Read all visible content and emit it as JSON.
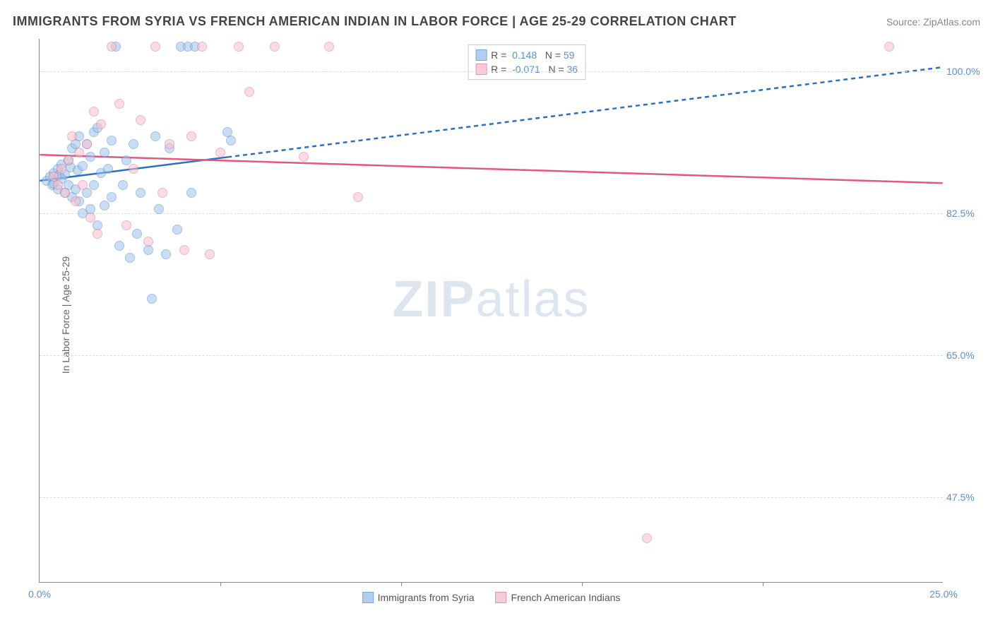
{
  "title": "IMMIGRANTS FROM SYRIA VS FRENCH AMERICAN INDIAN IN LABOR FORCE | AGE 25-29 CORRELATION CHART",
  "source": "Source: ZipAtlas.com",
  "ylabel": "In Labor Force | Age 25-29",
  "watermark_bold": "ZIP",
  "watermark_rest": "atlas",
  "chart": {
    "type": "scatter",
    "xlim": [
      0,
      25
    ],
    "ylim": [
      37,
      104
    ],
    "y_ticks": [
      47.5,
      65.0,
      82.5,
      100.0
    ],
    "y_tick_labels": [
      "47.5%",
      "65.0%",
      "82.5%",
      "100.0%"
    ],
    "x_ticks": [
      0,
      5,
      10,
      15,
      20,
      25
    ],
    "x_tick_labels": [
      "0.0%",
      "",
      "",
      "",
      "",
      "25.0%"
    ],
    "grid_color": "#dddddd",
    "background_color": "#ffffff",
    "series": [
      {
        "name": "Immigrants from Syria",
        "label": "Immigrants from Syria",
        "fill": "#9ec2ea",
        "stroke": "#5b8fd6",
        "fill_opacity": 0.55,
        "marker_size": 14,
        "R": "0.148",
        "N": "59",
        "trend": {
          "x1": 0,
          "y1": 86.5,
          "x2": 25,
          "y2": 100.5,
          "solid_until_x": 5.2,
          "color": "#2b6fc4",
          "width": 2.5,
          "dash": "6,5"
        },
        "points": [
          [
            0.2,
            86.5
          ],
          [
            0.3,
            87.0
          ],
          [
            0.35,
            86.0
          ],
          [
            0.4,
            87.5
          ],
          [
            0.4,
            86.2
          ],
          [
            0.5,
            88.0
          ],
          [
            0.5,
            85.5
          ],
          [
            0.55,
            87.2
          ],
          [
            0.6,
            86.8
          ],
          [
            0.6,
            88.5
          ],
          [
            0.7,
            85.0
          ],
          [
            0.7,
            87.3
          ],
          [
            0.8,
            89.0
          ],
          [
            0.8,
            86.0
          ],
          [
            0.85,
            88.2
          ],
          [
            0.9,
            84.5
          ],
          [
            0.9,
            90.5
          ],
          [
            1.0,
            91.0
          ],
          [
            1.0,
            85.5
          ],
          [
            1.05,
            87.8
          ],
          [
            1.1,
            84.0
          ],
          [
            1.1,
            92.0
          ],
          [
            1.2,
            82.5
          ],
          [
            1.2,
            88.3
          ],
          [
            1.3,
            91.0
          ],
          [
            1.3,
            85.0
          ],
          [
            1.4,
            83.0
          ],
          [
            1.4,
            89.5
          ],
          [
            1.5,
            92.5
          ],
          [
            1.5,
            86.0
          ],
          [
            1.6,
            81.0
          ],
          [
            1.6,
            93.0
          ],
          [
            1.7,
            87.5
          ],
          [
            1.8,
            90.0
          ],
          [
            1.8,
            83.5
          ],
          [
            1.9,
            88.0
          ],
          [
            2.0,
            91.5
          ],
          [
            2.0,
            84.5
          ],
          [
            2.1,
            103.0
          ],
          [
            2.2,
            78.5
          ],
          [
            2.3,
            86.0
          ],
          [
            2.4,
            89.0
          ],
          [
            2.5,
            77.0
          ],
          [
            2.6,
            91.0
          ],
          [
            2.7,
            80.0
          ],
          [
            2.8,
            85.0
          ],
          [
            3.0,
            78.0
          ],
          [
            3.1,
            72.0
          ],
          [
            3.2,
            92.0
          ],
          [
            3.3,
            83.0
          ],
          [
            3.5,
            77.5
          ],
          [
            3.6,
            90.5
          ],
          [
            3.8,
            80.5
          ],
          [
            3.9,
            103.0
          ],
          [
            4.1,
            103.0
          ],
          [
            4.2,
            85.0
          ],
          [
            4.3,
            103.0
          ],
          [
            5.2,
            92.5
          ],
          [
            5.3,
            91.5
          ]
        ]
      },
      {
        "name": "French American Indians",
        "label": "French American Indians",
        "fill": "#f5c0cd",
        "stroke": "#e27a9a",
        "fill_opacity": 0.55,
        "marker_size": 14,
        "R": "-0.071",
        "N": "36",
        "trend": {
          "x1": 0,
          "y1": 89.7,
          "x2": 25,
          "y2": 86.2,
          "solid_until_x": 25,
          "color": "#e2577f",
          "width": 2.5,
          "dash": ""
        },
        "points": [
          [
            0.4,
            87.0
          ],
          [
            0.5,
            86.0
          ],
          [
            0.6,
            88.0
          ],
          [
            0.7,
            85.0
          ],
          [
            0.8,
            89.0
          ],
          [
            0.9,
            92.0
          ],
          [
            1.0,
            84.0
          ],
          [
            1.1,
            90.0
          ],
          [
            1.2,
            86.0
          ],
          [
            1.3,
            91.0
          ],
          [
            1.4,
            82.0
          ],
          [
            1.5,
            95.0
          ],
          [
            1.6,
            80.0
          ],
          [
            1.7,
            93.5
          ],
          [
            2.0,
            103.0
          ],
          [
            2.2,
            96.0
          ],
          [
            2.4,
            81.0
          ],
          [
            2.6,
            88.0
          ],
          [
            2.8,
            94.0
          ],
          [
            3.0,
            79.0
          ],
          [
            3.2,
            103.0
          ],
          [
            3.4,
            85.0
          ],
          [
            3.6,
            91.0
          ],
          [
            4.0,
            78.0
          ],
          [
            4.2,
            92.0
          ],
          [
            4.5,
            103.0
          ],
          [
            4.7,
            77.5
          ],
          [
            5.0,
            90.0
          ],
          [
            5.5,
            103.0
          ],
          [
            5.8,
            97.5
          ],
          [
            6.5,
            103.0
          ],
          [
            7.3,
            89.5
          ],
          [
            8.0,
            103.0
          ],
          [
            8.8,
            84.5
          ],
          [
            16.8,
            42.5
          ],
          [
            23.5,
            103.0
          ]
        ]
      }
    ],
    "legend_top": {
      "R_label": "R =",
      "N_label": "N ="
    }
  }
}
